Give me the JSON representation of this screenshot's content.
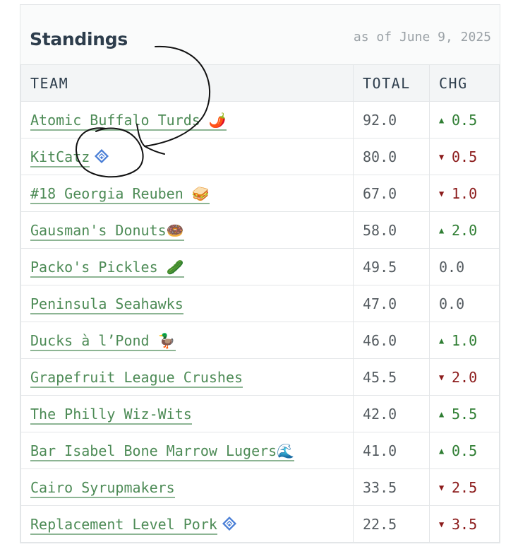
{
  "standings": {
    "title": "Standings",
    "as_of": "as of June 9, 2025",
    "columns": [
      "TEAM",
      "TOTAL",
      "CHG"
    ],
    "rows": [
      {
        "team": "Atomic Buffalo Turds 🌶️",
        "total": "92.0",
        "change": "0.5",
        "direction": "up",
        "badge": false
      },
      {
        "team": "KitCatz",
        "total": "80.0",
        "change": "0.5",
        "direction": "down",
        "badge": true
      },
      {
        "team": "#18 Georgia Reuben 🥪",
        "total": "67.0",
        "change": "1.0",
        "direction": "down",
        "badge": false
      },
      {
        "team": "Gausman's Donuts🍩",
        "total": "58.0",
        "change": "2.0",
        "direction": "up",
        "badge": false
      },
      {
        "team": "Packo's Pickles 🥒",
        "total": "49.5",
        "change": "0.0",
        "direction": "flat",
        "badge": false
      },
      {
        "team": "Peninsula Seahawks",
        "total": "47.0",
        "change": "0.0",
        "direction": "flat",
        "badge": false
      },
      {
        "team": "Ducks à l’Pond 🦆",
        "total": "46.0",
        "change": "1.0",
        "direction": "up",
        "badge": false
      },
      {
        "team": "Grapefruit League Crushes",
        "total": "45.5",
        "change": "2.0",
        "direction": "down",
        "badge": false
      },
      {
        "team": "The Philly Wiz-Wits",
        "total": "42.0",
        "change": "5.5",
        "direction": "up",
        "badge": false
      },
      {
        "team": "Bar Isabel Bone Marrow Lugers🌊",
        "total": "41.0",
        "change": "0.5",
        "direction": "up",
        "badge": false
      },
      {
        "team": "Cairo Syrupmakers",
        "total": "33.5",
        "change": "2.5",
        "direction": "down",
        "badge": false
      },
      {
        "team": "Replacement Level Pork",
        "total": "22.5",
        "change": "3.5",
        "direction": "down",
        "badge": true
      }
    ]
  },
  "icons": {
    "up": "triangle-up-icon",
    "down": "triangle-down-icon",
    "badge": "diamond-badge-icon"
  },
  "colors": {
    "link": "#4d8b56",
    "up": "#2e7d32",
    "down": "#8b1a1a",
    "badge": "#4a7fd6"
  }
}
